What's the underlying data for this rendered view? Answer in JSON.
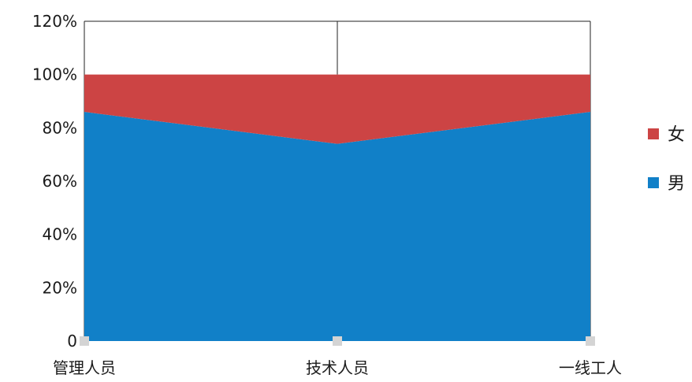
{
  "chart_data": {
    "type": "area",
    "stacked": "percent",
    "categories": [
      "管理人员",
      "技术人员",
      "一线工人"
    ],
    "series": [
      {
        "name": "男",
        "values": [
          86,
          74,
          86
        ],
        "color": "#1180c8"
      },
      {
        "name": "女",
        "values": [
          14,
          26,
          14
        ],
        "color": "#cc4444"
      }
    ],
    "ylim": [
      0,
      120
    ],
    "yticks": [
      "0",
      "20%",
      "40%",
      "60%",
      "80%",
      "100%",
      "120%"
    ],
    "legend": [
      "女",
      "男"
    ],
    "legend_position": "right",
    "grid": false
  }
}
